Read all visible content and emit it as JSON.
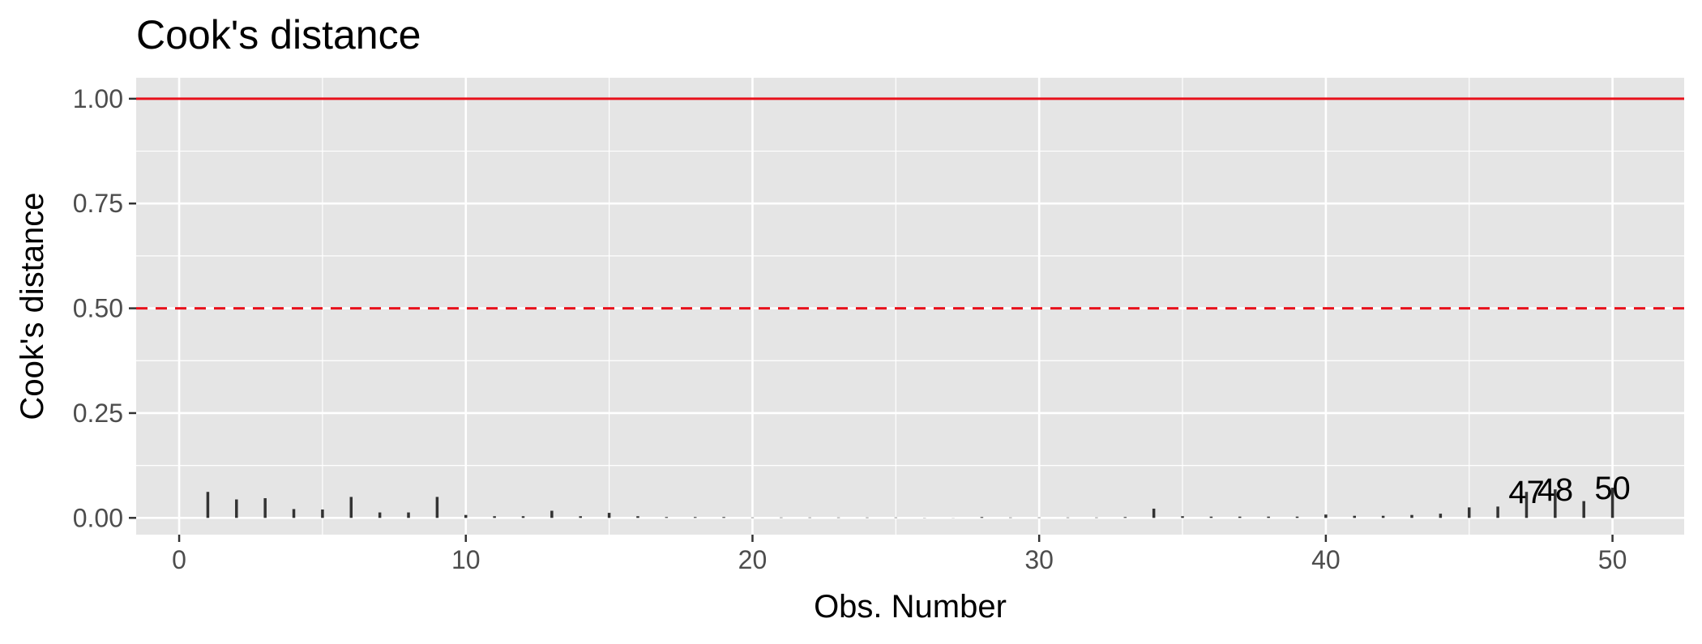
{
  "chart_data": {
    "type": "bar",
    "title": "Cook's distance",
    "xlabel": "Obs. Number",
    "ylabel": "Cook's distance",
    "xlim": [
      -1.5,
      52.5
    ],
    "ylim": [
      -0.04,
      1.05
    ],
    "x_ticks": [
      0,
      10,
      20,
      30,
      40,
      50
    ],
    "x_tick_labels": [
      "0",
      "10",
      "20",
      "30",
      "40",
      "50"
    ],
    "y_ticks": [
      0,
      0.25,
      0.5,
      0.75,
      1.0
    ],
    "y_tick_labels": [
      "0.00",
      "0.25",
      "0.50",
      "0.75",
      "1.00"
    ],
    "grid": true,
    "x": [
      1,
      2,
      3,
      4,
      5,
      6,
      7,
      8,
      9,
      10,
      11,
      12,
      13,
      14,
      15,
      16,
      17,
      18,
      19,
      20,
      21,
      22,
      23,
      24,
      25,
      26,
      27,
      28,
      29,
      30,
      31,
      32,
      33,
      34,
      35,
      36,
      37,
      38,
      39,
      40,
      41,
      42,
      43,
      44,
      45,
      46,
      47,
      48,
      49,
      50
    ],
    "values": [
      0.062,
      0.044,
      0.047,
      0.021,
      0.02,
      0.05,
      0.013,
      0.013,
      0.05,
      0.007,
      0.004,
      0.004,
      0.017,
      0.004,
      0.012,
      0.004,
      0.002,
      0.002,
      0.002,
      0.001,
      0.001,
      0.001,
      0.001,
      0.001,
      0.001,
      0.0005,
      0.0003,
      0.002,
      0.001,
      0.001,
      0.001,
      0.001,
      0.002,
      0.022,
      0.004,
      0.003,
      0.003,
      0.003,
      0.003,
      0.008,
      0.005,
      0.005,
      0.007,
      0.01,
      0.025,
      0.027,
      0.062,
      0.068,
      0.04,
      0.072
    ],
    "point_labels": [
      {
        "x": 47,
        "text": "47"
      },
      {
        "x": 48,
        "text": "48"
      },
      {
        "x": 50,
        "text": "50"
      }
    ],
    "reference_lines": [
      {
        "y": 1.0,
        "style": "solid",
        "color": "#e8111b"
      },
      {
        "y": 0.5,
        "style": "dashed",
        "color": "#e8111b"
      }
    ],
    "panel_color": "#e5e5e5",
    "grid_color": "#ffffff",
    "bar_color": "#333333"
  }
}
